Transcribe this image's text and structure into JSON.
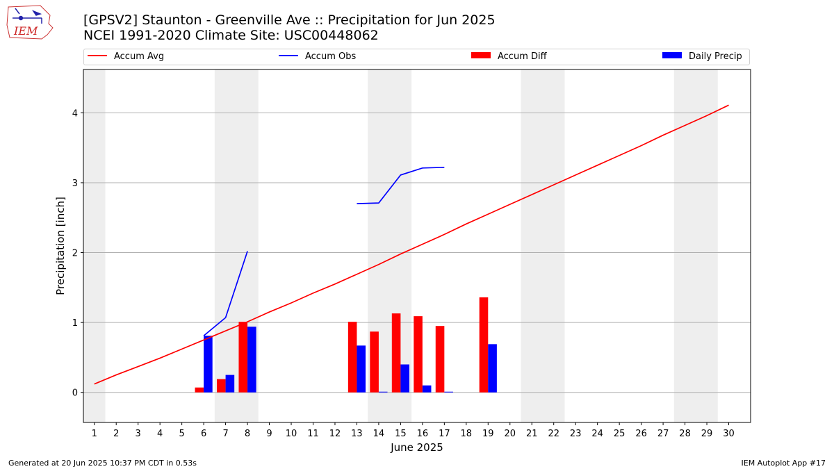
{
  "logo": {
    "text": "IEM"
  },
  "header": {
    "title_line1": "[GPSV2] Staunton - Greenville Ave :: Precipitation for Jun 2025",
    "title_line2": "NCEI 1991-2020 Climate Site: USC00448062"
  },
  "footer": {
    "left": "Generated at 20 Jun 2025 10:37 PM CDT in 0.53s",
    "right": "IEM Autoplot App #17"
  },
  "colors": {
    "avg": "#ff0000",
    "obs": "#0000ff",
    "diff": "#ff0000",
    "daily": "#0000ff",
    "weekend": "#eeeeee",
    "grid": "#b0b0b0"
  },
  "chart_data": {
    "type": "bar",
    "xlabel": "June 2025",
    "ylabel": "Precipitation [inch]",
    "xlim": [
      0.5,
      31.0
    ],
    "ylim": [
      -0.43,
      4.62
    ],
    "yticks": [
      0,
      1,
      2,
      3,
      4
    ],
    "days": [
      1,
      2,
      3,
      4,
      5,
      6,
      7,
      8,
      9,
      10,
      11,
      12,
      13,
      14,
      15,
      16,
      17,
      18,
      19,
      20,
      21,
      22,
      23,
      24,
      25,
      26,
      27,
      28,
      29,
      30
    ],
    "weekend_shading": [
      [
        0.5,
        1.5
      ],
      [
        6.5,
        8.5
      ],
      [
        13.5,
        15.5
      ],
      [
        20.5,
        22.5
      ],
      [
        27.5,
        29.5
      ]
    ],
    "grid": "horizontal",
    "legend": {
      "placement": "top",
      "entries": [
        "Accum Avg",
        "Accum Obs",
        "Accum Diff",
        "Daily Precip"
      ]
    },
    "series": [
      {
        "name": "Accum Avg",
        "kind": "line",
        "x": [
          1,
          2,
          3,
          4,
          5,
          6,
          7,
          8,
          9,
          10,
          11,
          12,
          13,
          14,
          15,
          16,
          17,
          18,
          19,
          20,
          21,
          22,
          23,
          24,
          25,
          26,
          27,
          28,
          29,
          30
        ],
        "values": [
          0.12,
          0.25,
          0.37,
          0.49,
          0.62,
          0.75,
          0.88,
          1.01,
          1.15,
          1.28,
          1.42,
          1.55,
          1.69,
          1.83,
          1.98,
          2.12,
          2.26,
          2.41,
          2.55,
          2.69,
          2.83,
          2.97,
          3.11,
          3.25,
          3.39,
          3.53,
          3.68,
          3.82,
          3.96,
          4.11
        ]
      },
      {
        "name": "Accum Obs",
        "kind": "line",
        "segments": [
          {
            "x": [
              6,
              7,
              8
            ],
            "values": [
              0.81,
              1.07,
              2.02
            ]
          },
          {
            "x": [
              13,
              14,
              15,
              16,
              17
            ],
            "values": [
              2.7,
              2.71,
              3.11,
              3.21,
              3.22
            ]
          }
        ]
      },
      {
        "name": "Accum Diff",
        "kind": "bar",
        "x": [
          6,
          7,
          8,
          13,
          14,
          15,
          16,
          17,
          19
        ],
        "values": [
          0.07,
          0.19,
          1.01,
          1.01,
          0.87,
          1.13,
          1.09,
          0.95,
          1.36
        ]
      },
      {
        "name": "Daily Precip",
        "kind": "bar",
        "x": [
          6,
          7,
          8,
          13,
          14,
          15,
          16,
          17,
          19
        ],
        "values": [
          0.81,
          0.25,
          0.94,
          0.67,
          0.01,
          0.4,
          0.1,
          0.01,
          0.69
        ]
      }
    ]
  }
}
